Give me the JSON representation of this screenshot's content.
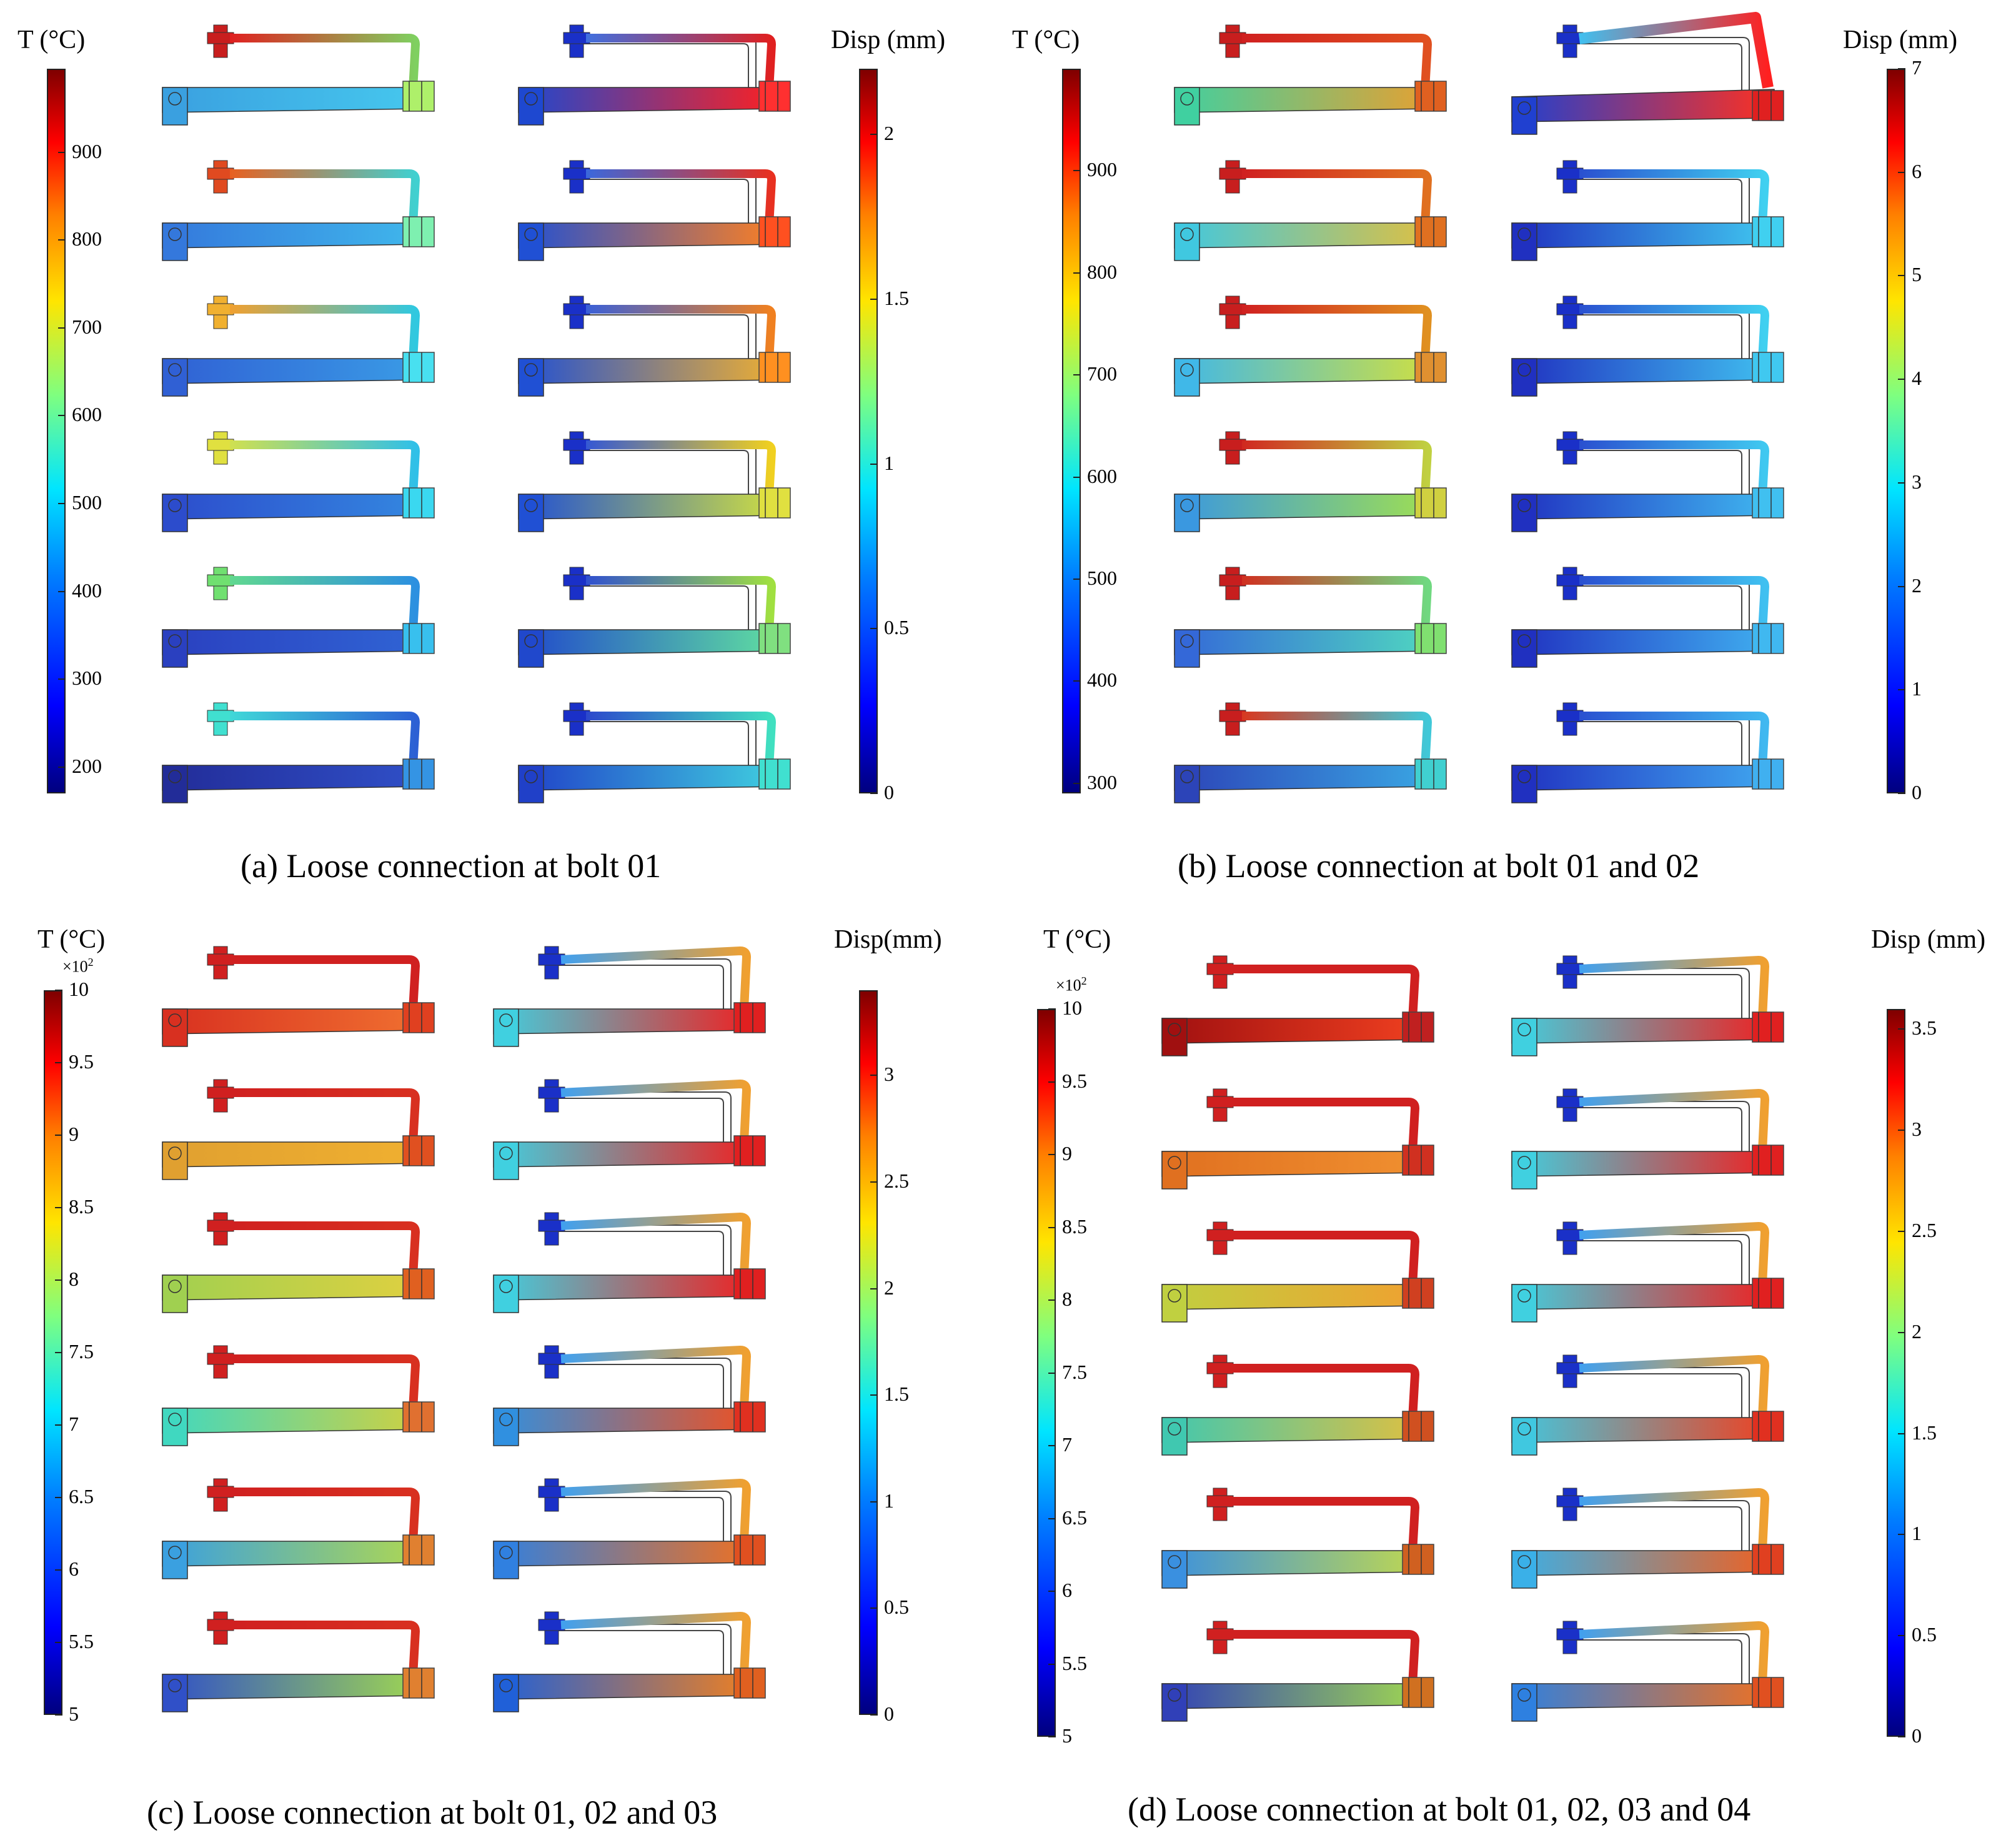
{
  "panels": [
    {
      "caption": "(a) Loose connection at bolt 01",
      "temp_colorbar": {
        "title": "T (°C)",
        "multiplier": "",
        "ticks": [
          "900",
          "800",
          "700",
          "600",
          "500",
          "400",
          "300",
          "200"
        ],
        "tick_values": [
          900,
          800,
          700,
          600,
          500,
          400,
          300,
          200
        ],
        "range": [
          170,
          995
        ]
      },
      "disp_colorbar": {
        "title": "Disp (mm)",
        "ticks": [
          "2",
          "1.5",
          "1",
          "0.5",
          "0"
        ],
        "tick_values": [
          2,
          1.5,
          1,
          0.5,
          0
        ],
        "range": [
          0,
          2.2
        ]
      },
      "temp_colors": [
        {
          "bolt": "#c81e1e",
          "pipe_left": "#e02020",
          "pipe_right": "#7fd060",
          "bar_left": "#3aa0e0",
          "bar_right": "#46c8ee",
          "joint": "#aef06a"
        },
        {
          "bolt": "#e04a20",
          "pipe_left": "#e86020",
          "pipe_right": "#40d0d0",
          "bar_left": "#3478dc",
          "bar_right": "#40b8ec",
          "joint": "#7ef0b0"
        },
        {
          "bolt": "#f0b030",
          "pipe_left": "#f0a030",
          "pipe_right": "#30c8e0",
          "bar_left": "#3060d4",
          "bar_right": "#3a9ce6",
          "joint": "#48e0f0"
        },
        {
          "bolt": "#e0e040",
          "pipe_left": "#d0e050",
          "pipe_right": "#30c0e8",
          "bar_left": "#2c4ccc",
          "bar_right": "#3488e0",
          "joint": "#3ad8f0"
        },
        {
          "bolt": "#70e070",
          "pipe_left": "#60d890",
          "pipe_right": "#2c90e0",
          "bar_left": "#2a40c0",
          "bar_right": "#3064d4",
          "joint": "#38c0ee"
        },
        {
          "bolt": "#40e0d0",
          "pipe_left": "#40d8d8",
          "pipe_right": "#2c60d4",
          "bar_left": "#222c98",
          "bar_right": "#3050c8",
          "joint": "#3494e4"
        }
      ],
      "disp_colors": [
        {
          "bolt": "#1a30c8",
          "pipe_left": "#4070e0",
          "pipe_right": "#e02020",
          "bar_left": "#1e48d0",
          "bar_right": "#ff2020",
          "joint": "#ff3030"
        },
        {
          "bolt": "#1a30c8",
          "pipe_left": "#3a68dc",
          "pipe_right": "#e83020",
          "bar_left": "#2050d4",
          "bar_right": "#ff8020",
          "joint": "#ff5020"
        },
        {
          "bolt": "#1a30c8",
          "pipe_left": "#3a60d8",
          "pipe_right": "#f08020",
          "bar_left": "#2050d4",
          "bar_right": "#f0b030",
          "joint": "#ff9020"
        },
        {
          "bolt": "#1a30c8",
          "pipe_left": "#3458d4",
          "pipe_right": "#f0d020",
          "bar_left": "#2050d4",
          "bar_right": "#d0e040",
          "joint": "#e0e040"
        },
        {
          "bolt": "#1a30c8",
          "pipe_left": "#3050d0",
          "pipe_right": "#a0e040",
          "bar_left": "#2048cc",
          "bar_right": "#60e0a0",
          "joint": "#80e080"
        },
        {
          "bolt": "#1a30c8",
          "pipe_left": "#2c48cc",
          "pipe_right": "#40e0c0",
          "bar_left": "#2040c8",
          "bar_right": "#40d0e0",
          "joint": "#40e0d0"
        }
      ]
    },
    {
      "caption": "(b) Loose connection at bolt 01 and 02",
      "temp_colorbar": {
        "title": "T (°C)",
        "multiplier": "",
        "ticks": [
          "900",
          "800",
          "700",
          "600",
          "500",
          "400",
          "300"
        ],
        "tick_values": [
          900,
          800,
          700,
          600,
          500,
          400,
          300
        ],
        "range": [
          290,
          1000
        ]
      },
      "disp_colorbar": {
        "title": "Disp (mm)",
        "ticks": [
          "7",
          "6",
          "5",
          "4",
          "3",
          "2",
          "1",
          "0"
        ],
        "tick_values": [
          7,
          6,
          5,
          4,
          3,
          2,
          1,
          0
        ],
        "range": [
          0,
          7
        ]
      },
      "temp_colors": [
        {
          "bolt": "#c81e1e",
          "pipe_left": "#d02020",
          "pipe_right": "#e05020",
          "bar_left": "#40d0a0",
          "bar_right": "#e8a030",
          "joint": "#e06020"
        },
        {
          "bolt": "#c81e1e",
          "pipe_left": "#d02020",
          "pipe_right": "#e07020",
          "bar_left": "#40c8e0",
          "bar_right": "#e0c040",
          "joint": "#e07020"
        },
        {
          "bolt": "#c81e1e",
          "pipe_left": "#d02020",
          "pipe_right": "#e09020",
          "bar_left": "#40b8e8",
          "bar_right": "#d0e040",
          "joint": "#e09030"
        },
        {
          "bolt": "#c81e1e",
          "pipe_left": "#d02820",
          "pipe_right": "#c0d040",
          "bar_left": "#3a98e0",
          "bar_right": "#a0e050",
          "joint": "#d0d040"
        },
        {
          "bolt": "#c81e1e",
          "pipe_left": "#d03020",
          "pipe_right": "#70d880",
          "bar_left": "#3468d8",
          "bar_right": "#50d8c0",
          "joint": "#80e070"
        },
        {
          "bolt": "#c81e1e",
          "pipe_left": "#d83820",
          "pipe_right": "#40c8d8",
          "bar_left": "#2c44b8",
          "bar_right": "#3aa8e4",
          "joint": "#40d0d0"
        }
      ],
      "disp_colors": [
        {
          "bolt": "#1a30c8",
          "pipe_left": "#40c0f0",
          "pipe_right": "#ff2020",
          "bar_left": "#2040d0",
          "bar_right": "#ff3020",
          "joint": "#e02020"
        },
        {
          "bolt": "#1a30c8",
          "pipe_left": "#2a50d0",
          "pipe_right": "#40d0f0",
          "bar_left": "#2030c0",
          "bar_right": "#40c8f0",
          "joint": "#40d0f0"
        },
        {
          "bolt": "#1a30c8",
          "pipe_left": "#2a50d0",
          "pipe_right": "#40d0f0",
          "bar_left": "#2030c0",
          "bar_right": "#40c0f0",
          "joint": "#40c8f0"
        },
        {
          "bolt": "#1a30c8",
          "pipe_left": "#2a50d0",
          "pipe_right": "#40c8f0",
          "bar_left": "#2030c0",
          "bar_right": "#40b8f0",
          "joint": "#40c0f0"
        },
        {
          "bolt": "#1a30c8",
          "pipe_left": "#2a50d0",
          "pipe_right": "#40c0f0",
          "bar_left": "#2030c0",
          "bar_right": "#40b0f0",
          "joint": "#40b8f0"
        },
        {
          "bolt": "#1a30c8",
          "pipe_left": "#2a50d0",
          "pipe_right": "#40b8f0",
          "bar_left": "#2030c0",
          "bar_right": "#40a8f0",
          "joint": "#40b0f0"
        }
      ]
    },
    {
      "caption": "(c) Loose connection at bolt 01, 02 and 03",
      "temp_colorbar": {
        "title": "T (°C)",
        "multiplier": "×10",
        "ticks": [
          "10",
          "9.5",
          "9",
          "8.5",
          "8",
          "7.5",
          "7",
          "6.5",
          "6",
          "5.5",
          "5"
        ],
        "tick_values": [
          10,
          9.5,
          9,
          8.5,
          8,
          7.5,
          7,
          6.5,
          6,
          5.5,
          5
        ],
        "range": [
          5,
          10
        ]
      },
      "disp_colorbar": {
        "title": "Disp(mm)",
        "ticks": [
          "3",
          "2.5",
          "2",
          "1.5",
          "1",
          "0.5",
          "0"
        ],
        "tick_values": [
          3,
          2.5,
          2,
          1.5,
          1,
          0.5,
          0
        ],
        "range": [
          0,
          3.4
        ]
      },
      "temp_colors": [
        {
          "bolt": "#d02020",
          "pipe_left": "#d02020",
          "pipe_right": "#d02020",
          "bar_left": "#d83020",
          "bar_right": "#f07030",
          "joint": "#e04020"
        },
        {
          "bolt": "#d02020",
          "pipe_left": "#d02020",
          "pipe_right": "#d83020",
          "bar_left": "#e0a030",
          "bar_right": "#f0b030",
          "joint": "#e05020"
        },
        {
          "bolt": "#d02020",
          "pipe_left": "#d02020",
          "pipe_right": "#d83020",
          "bar_left": "#a0d050",
          "bar_right": "#e0d040",
          "joint": "#e06020"
        },
        {
          "bolt": "#d02020",
          "pipe_left": "#d02020",
          "pipe_right": "#d83020",
          "bar_left": "#40d8c0",
          "bar_right": "#d0d040",
          "joint": "#e07030"
        },
        {
          "bolt": "#d02020",
          "pipe_left": "#d02020",
          "pipe_right": "#d83020",
          "bar_left": "#3aa0e0",
          "bar_right": "#b0d850",
          "joint": "#e08030"
        },
        {
          "bolt": "#d02020",
          "pipe_left": "#d02020",
          "pipe_right": "#d83020",
          "bar_left": "#3050c8",
          "bar_right": "#a0d850",
          "joint": "#e08030"
        }
      ],
      "disp_colors": [
        {
          "bolt": "#1a30c8",
          "pipe_left": "#40a0f0",
          "pipe_right": "#f0a030",
          "bar_left": "#40d0e0",
          "bar_right": "#f02020",
          "joint": "#e02020"
        },
        {
          "bolt": "#1a30c8",
          "pipe_left": "#40a0f0",
          "pipe_right": "#f0a030",
          "bar_left": "#40d0e0",
          "bar_right": "#f02020",
          "joint": "#e02020"
        },
        {
          "bolt": "#1a30c8",
          "pipe_left": "#40a0f0",
          "pipe_right": "#f0a030",
          "bar_left": "#40d0e0",
          "bar_right": "#f02020",
          "joint": "#e02020"
        },
        {
          "bolt": "#1a30c8",
          "pipe_left": "#40a0f0",
          "pipe_right": "#f0a030",
          "bar_left": "#3090e0",
          "bar_right": "#f05020",
          "joint": "#e03020"
        },
        {
          "bolt": "#1a30c8",
          "pipe_left": "#40a0f0",
          "pipe_right": "#f0a030",
          "bar_left": "#3080e0",
          "bar_right": "#f07020",
          "joint": "#e05020"
        },
        {
          "bolt": "#1a30c8",
          "pipe_left": "#40a0f0",
          "pipe_right": "#f0a030",
          "bar_left": "#2060d8",
          "bar_right": "#f08020",
          "joint": "#e06020"
        }
      ]
    },
    {
      "caption": "(d) Loose connection at bolt 01, 02, 03 and 04",
      "temp_colorbar": {
        "title": "T (°C)",
        "multiplier": "×10",
        "ticks": [
          "10",
          "9.5",
          "9",
          "8.5",
          "8",
          "7.5",
          "7",
          "6.5",
          "6",
          "5.5",
          "5"
        ],
        "tick_values": [
          10,
          9.5,
          9,
          8.5,
          8,
          7.5,
          7,
          6.5,
          6,
          5.5,
          5
        ],
        "range": [
          5,
          10
        ]
      },
      "disp_colorbar": {
        "title": "Disp (mm)",
        "ticks": [
          "3.5",
          "3",
          "2.5",
          "2",
          "1.5",
          "1",
          "0.5",
          "0"
        ],
        "tick_values": [
          3.5,
          3,
          2.5,
          2,
          1.5,
          1,
          0.5,
          0
        ],
        "range": [
          0,
          3.6
        ]
      },
      "temp_colors": [
        {
          "bolt": "#d02020",
          "pipe_left": "#d02020",
          "pipe_right": "#d02020",
          "bar_left": "#a01010",
          "bar_right": "#f04020",
          "joint": "#c02020"
        },
        {
          "bolt": "#d02020",
          "pipe_left": "#d02020",
          "pipe_right": "#d02020",
          "bar_left": "#e07020",
          "bar_right": "#f09030",
          "joint": "#d03020"
        },
        {
          "bolt": "#d02020",
          "pipe_left": "#d02020",
          "pipe_right": "#d02020",
          "bar_left": "#c0d040",
          "bar_right": "#f0a030",
          "joint": "#d04020"
        },
        {
          "bolt": "#d02020",
          "pipe_left": "#d02020",
          "pipe_right": "#d02020",
          "bar_left": "#40c8b0",
          "bar_right": "#e0c040",
          "joint": "#d05020"
        },
        {
          "bolt": "#d02020",
          "pipe_left": "#d02020",
          "pipe_right": "#d02020",
          "bar_left": "#3a90e0",
          "bar_right": "#c0d850",
          "joint": "#d06020"
        },
        {
          "bolt": "#d02020",
          "pipe_left": "#d02020",
          "pipe_right": "#d02020",
          "bar_left": "#3040b8",
          "bar_right": "#a0d850",
          "joint": "#d07020"
        }
      ],
      "disp_colors": [
        {
          "bolt": "#1a30c8",
          "pipe_left": "#40a0f0",
          "pipe_right": "#f0a030",
          "bar_left": "#40d0e0",
          "bar_right": "#f02020",
          "joint": "#e02020"
        },
        {
          "bolt": "#1a30c8",
          "pipe_left": "#40a0f0",
          "pipe_right": "#f0a030",
          "bar_left": "#40d0e0",
          "bar_right": "#f02020",
          "joint": "#e02020"
        },
        {
          "bolt": "#1a30c8",
          "pipe_left": "#40a0f0",
          "pipe_right": "#f0a030",
          "bar_left": "#40d0e0",
          "bar_right": "#f02020",
          "joint": "#e02020"
        },
        {
          "bolt": "#1a30c8",
          "pipe_left": "#40a0f0",
          "pipe_right": "#f0a030",
          "bar_left": "#40c8e0",
          "bar_right": "#f04020",
          "joint": "#e03020"
        },
        {
          "bolt": "#1a30c8",
          "pipe_left": "#40a0f0",
          "pipe_right": "#f0a030",
          "bar_left": "#3ab0e8",
          "bar_right": "#f06020",
          "joint": "#e04020"
        },
        {
          "bolt": "#1a30c8",
          "pipe_left": "#40a0f0",
          "pipe_right": "#f0a030",
          "bar_left": "#2e80e0",
          "bar_right": "#f07020",
          "joint": "#e05020"
        }
      ]
    }
  ]
}
